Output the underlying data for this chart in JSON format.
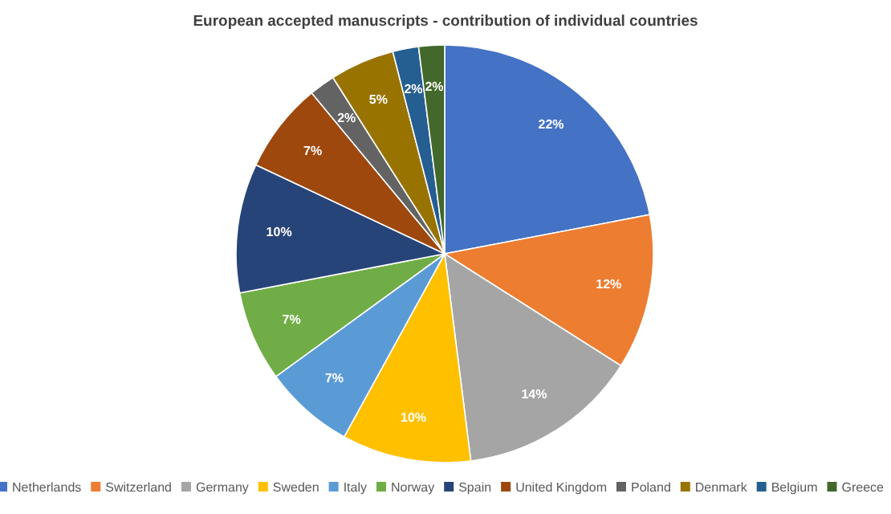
{
  "chart_data": {
    "type": "pie",
    "title": "European accepted manuscripts - contribution of individual countries",
    "categories": [
      "Netherlands",
      "Switzerland",
      "Germany",
      "Sweden",
      "Italy",
      "Norway",
      "Spain",
      "United Kingdom",
      "Poland",
      "Denmark",
      "Belgium",
      "Greece"
    ],
    "values": [
      22,
      12,
      14,
      10,
      7,
      7,
      10,
      7,
      2,
      5,
      2,
      2
    ],
    "value_labels": [
      "22%",
      "12%",
      "14%",
      "10%",
      "7%",
      "7%",
      "10%",
      "7%",
      "2%",
      "5%",
      "2%",
      "2%"
    ],
    "colors": [
      "#4472c4",
      "#ed7d31",
      "#a5a5a5",
      "#ffc000",
      "#5b9bd5",
      "#70ad47",
      "#264478",
      "#9e480e",
      "#636363",
      "#997300",
      "#255e91",
      "#43682b"
    ],
    "legend": "bottom"
  }
}
